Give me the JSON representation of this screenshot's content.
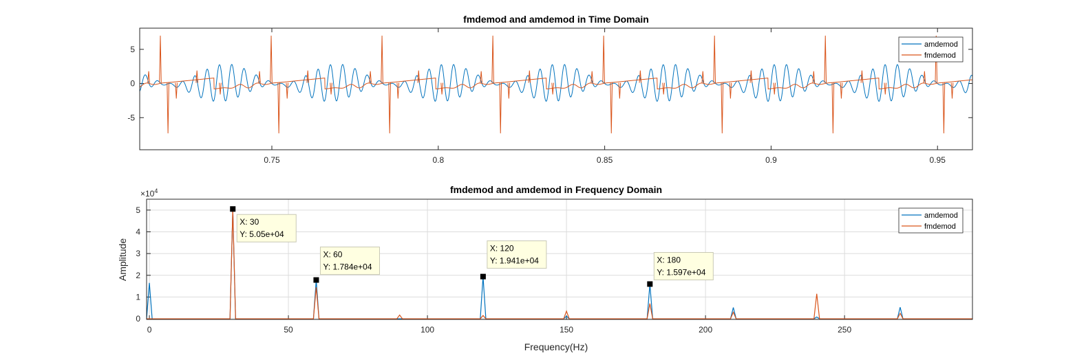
{
  "colors": {
    "amdemod": "#0072BD",
    "fmdemod": "#D95319",
    "grid": "#dcdcdc",
    "datatip_bg": "#ffffe1"
  },
  "chart_data": [
    {
      "type": "line",
      "title": "fmdemod and amdemod in Time Domain",
      "xlabel": "",
      "ylabel": "",
      "xlim": [
        0.7103,
        0.9605
      ],
      "ylim": [
        -9.7,
        8.1
      ],
      "xticks": [
        0.75,
        0.8,
        0.85,
        0.9,
        0.95
      ],
      "xtick_labels": [
        "0.75",
        "0.8",
        "0.85",
        "0.9",
        "0.95"
      ],
      "yticks": [
        -5,
        0,
        5
      ],
      "ytick_labels": [
        "-5",
        "0",
        "5"
      ],
      "grid": false,
      "legend": "top-right",
      "period_s": 0.0333,
      "series": [
        {
          "name": "amdemod",
          "color": "#0072BD",
          "description": "periodic oscillation, amplitude about 1.5 to 2, period 1/30 s",
          "peak_amplitude": 2.0
        },
        {
          "name": "fmdemod",
          "color": "#D95319",
          "description": "sawtooth-like baseline with sharp spikes about +7 and -7.3 each period",
          "spike_high": 7.0,
          "spike_low": -7.3,
          "spike_high_x": [
            0.7165,
            0.7828,
            0.8495,
            0.9163
          ],
          "spike_low_x": [
            0.7188,
            0.7853,
            0.8519,
            0.9187
          ]
        }
      ]
    },
    {
      "type": "line",
      "title": "fmdemod and amdemod in Frequency Domain",
      "xlabel": "Frequency(Hz)",
      "ylabel": "Amplitude",
      "y_exponent": "×10",
      "y_exponent_power": "4",
      "xlim": [
        -1,
        296
      ],
      "ylim": [
        -300,
        55000
      ],
      "xticks": [
        0,
        50,
        100,
        150,
        200,
        250
      ],
      "xtick_labels": [
        "0",
        "50",
        "100",
        "150",
        "200",
        "250"
      ],
      "yticks": [
        0,
        10000,
        20000,
        30000,
        40000,
        50000
      ],
      "ytick_labels": [
        "0",
        "1",
        "2",
        "3",
        "4",
        "5"
      ],
      "grid": true,
      "legend": "top-right",
      "series": [
        {
          "name": "amdemod",
          "color": "#0072BD",
          "x": [
            0,
            30,
            60,
            90,
            120,
            150,
            180,
            210,
            240,
            270
          ],
          "y": [
            16500,
            50500,
            17840,
            0,
            19410,
            1200,
            15970,
            5200,
            800,
            5300
          ]
        },
        {
          "name": "fmdemod",
          "color": "#D95319",
          "x": [
            0,
            30,
            60,
            90,
            120,
            150,
            180,
            210,
            240,
            270
          ],
          "y": [
            0,
            50500,
            14500,
            1700,
            1500,
            3500,
            7000,
            3000,
            11500,
            2500
          ]
        }
      ],
      "datatips": [
        {
          "x": 30,
          "y": 50500,
          "label_x": "X: 30",
          "label_y": "Y: 5.05e+04"
        },
        {
          "x": 60,
          "y": 17840,
          "label_x": "X: 60",
          "label_y": "Y: 1.784e+04"
        },
        {
          "x": 120,
          "y": 19410,
          "label_x": "X: 120",
          "label_y": "Y: 1.941e+04"
        },
        {
          "x": 180,
          "y": 15970,
          "label_x": "X: 180",
          "label_y": "Y: 1.597e+04"
        }
      ]
    }
  ]
}
